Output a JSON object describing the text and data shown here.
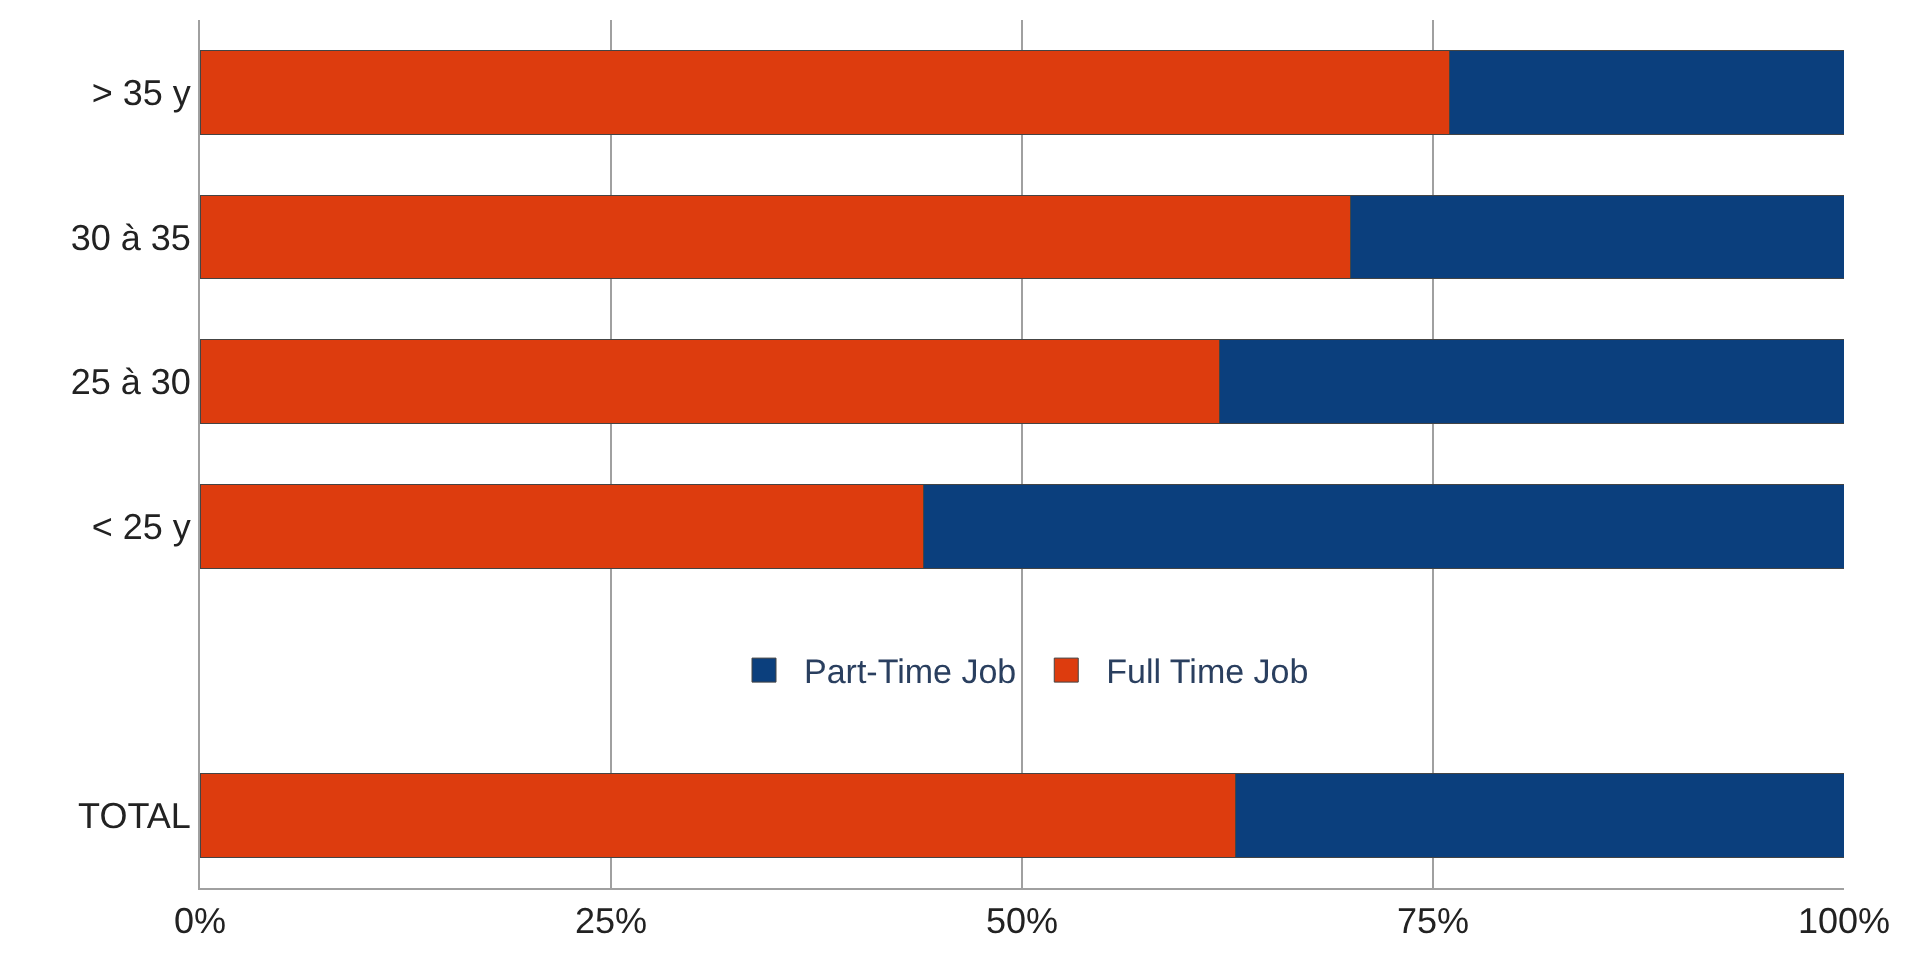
{
  "chart_data": {
    "type": "bar",
    "orientation": "horizontal",
    "stacked": true,
    "categories": [
      "> 35 y",
      "30 à 35",
      "25 à 30",
      "< 25 y",
      null,
      "TOTAL"
    ],
    "series": [
      {
        "name": "Full Time Job",
        "color": "#dd3c0e",
        "values": [
          76,
          70,
          62,
          44,
          null,
          63
        ]
      },
      {
        "name": "Part-Time Job",
        "color": "#0b3f7d",
        "values": [
          24,
          30,
          38,
          56,
          null,
          37
        ]
      }
    ],
    "xlim": [
      0,
      100
    ],
    "xticks": [
      {
        "value": 0,
        "label": "0%"
      },
      {
        "value": 25,
        "label": "25%"
      },
      {
        "value": 50,
        "label": "50%"
      },
      {
        "value": 75,
        "label": "75%"
      },
      {
        "value": 100,
        "label": "100%"
      }
    ],
    "grid": "x",
    "legend": "center"
  }
}
